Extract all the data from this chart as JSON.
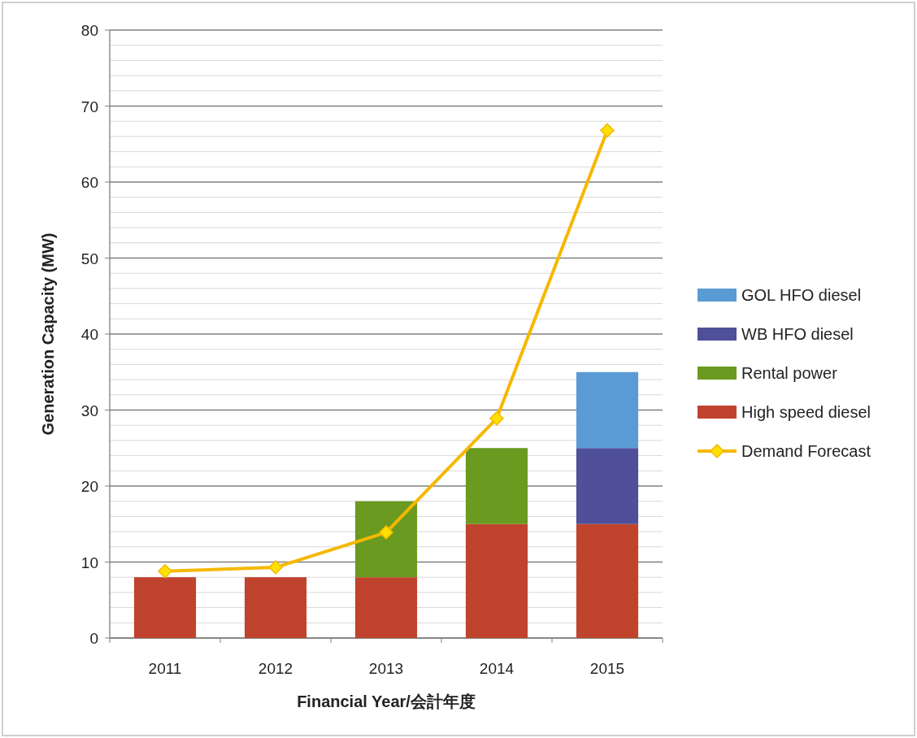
{
  "chart_data": {
    "type": "bar",
    "stacked": true,
    "xlabel": "Financial Year/会計年度",
    "ylabel": "Generation Capacity (MW)",
    "categories": [
      "2011",
      "2012",
      "2013",
      "2014",
      "2015"
    ],
    "series": [
      {
        "name": "High speed diesel",
        "color": "#c0432d",
        "values": [
          8,
          8,
          8,
          15,
          15
        ]
      },
      {
        "name": "Rental power",
        "color": "#6a9a1f",
        "values": [
          0,
          0,
          10,
          10,
          0
        ]
      },
      {
        "name": "WB HFO diesel",
        "color": "#4f4f9a",
        "values": [
          0,
          0,
          0,
          0,
          10
        ]
      },
      {
        "name": "GOL HFO diesel",
        "color": "#5b9bd5",
        "values": [
          0,
          0,
          0,
          0,
          10
        ]
      },
      {
        "name": "Demand Forecast",
        "type": "line",
        "color": "#f5b800",
        "marker": "diamond",
        "values": [
          8.8,
          9.3,
          13.9,
          28.9,
          66.8
        ]
      }
    ],
    "ylim": [
      0,
      80
    ],
    "yticks": [
      0,
      {
        "value": 2,
        "label": null
      },
      {
        "value": 4,
        "label": null
      },
      {
        "value": 6,
        "label": null
      },
      {
        "value": 8,
        "label": null
      },
      10,
      {
        "value": 12,
        "label": null
      },
      {
        "value": 14,
        "label": null
      },
      {
        "value": 16,
        "label": null
      },
      {
        "value": 18,
        "label": null
      },
      20,
      {
        "value": 22,
        "label": null
      },
      {
        "value": 24,
        "label": null
      },
      {
        "value": 26,
        "label": null
      },
      {
        "value": 28,
        "label": null
      },
      30,
      {
        "value": 32,
        "label": null
      },
      {
        "value": 34,
        "label": null
      },
      {
        "value": 36,
        "label": null
      },
      {
        "value": 38,
        "label": null
      },
      40,
      {
        "value": 42,
        "label": null
      },
      {
        "value": 44,
        "label": null
      },
      {
        "value": 46,
        "label": null
      },
      {
        "value": 48,
        "label": null
      },
      50,
      {
        "value": 52,
        "label": null
      },
      {
        "value": 54,
        "label": null
      },
      {
        "value": 56,
        "label": null
      },
      {
        "value": 58,
        "label": null
      },
      60,
      {
        "value": 62,
        "label": null
      },
      {
        "value": 64,
        "label": null
      },
      {
        "value": 66,
        "label": null
      },
      {
        "value": 68,
        "label": null
      },
      70,
      {
        "value": 72,
        "label": null
      },
      {
        "value": 74,
        "label": null
      },
      {
        "value": 76,
        "label": null
      },
      {
        "value": 78,
        "label": null
      },
      80
    ],
    "grid": "y",
    "legend": "right"
  }
}
